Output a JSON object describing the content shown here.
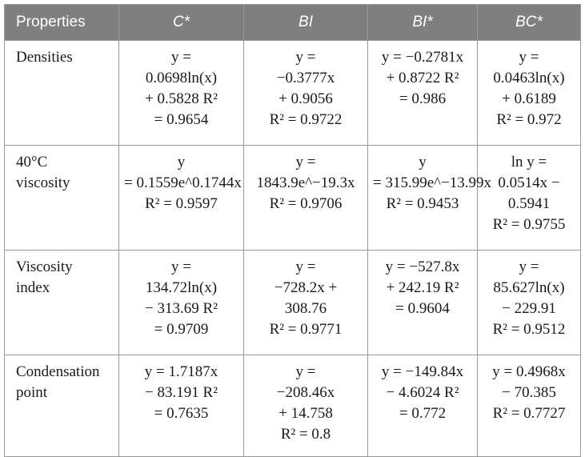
{
  "table": {
    "headers": [
      "Properties",
      "C*",
      "BI",
      "BI*",
      "BC*"
    ],
    "rows": [
      {
        "property": [
          "Densities"
        ],
        "cells": [
          [
            "y =",
            "0.0698ln(x)",
            "+ 0.5828 R²",
            "= 0.9654"
          ],
          [
            "y =",
            "−0.3777x",
            "+ 0.9056",
            "R² = 0.9722"
          ],
          [
            "y = −0.2781x",
            "+ 0.8722 R²",
            "= 0.986"
          ],
          [
            "y =",
            "0.0463ln(x)",
            "+ 0.6189",
            "R² = 0.972"
          ]
        ]
      },
      {
        "property": [
          "40°C",
          "viscosity"
        ],
        "cells": [
          [
            "y",
            "= 0.1559e^0.1744x",
            "R² = 0.9597"
          ],
          [
            "y =",
            "1843.9e^−19.3x",
            "R² = 0.9706"
          ],
          [
            "y",
            "= 315.99e^−13.99x",
            "R² = 0.9453"
          ],
          [
            "ln y =",
            "0.0514x −",
            "0.5941",
            "R² = 0.9755"
          ]
        ]
      },
      {
        "property": [
          "Viscosity",
          "index"
        ],
        "cells": [
          [
            "y =",
            "134.72ln(x)",
            "− 313.69 R²",
            "= 0.9709"
          ],
          [
            "y =",
            "−728.2x +",
            "308.76",
            "R² = 0.9771"
          ],
          [
            "y = −527.8x",
            "+ 242.19 R²",
            "= 0.9604"
          ],
          [
            "y =",
            "85.627ln(x)",
            "− 229.91",
            "R² = 0.9512"
          ]
        ]
      },
      {
        "property": [
          "Condensation",
          "point"
        ],
        "cells": [
          [
            "y = 1.7187x",
            "− 83.191 R²",
            "= 0.7635"
          ],
          [
            "y =",
            "−208.46x",
            "+ 14.758",
            "R² = 0.8"
          ],
          [
            "y = −149.84x",
            "− 4.6024 R²",
            "= 0.772"
          ],
          [
            "y = 0.4968x",
            "− 70.385",
            "R² = 0.7727"
          ]
        ]
      }
    ]
  }
}
